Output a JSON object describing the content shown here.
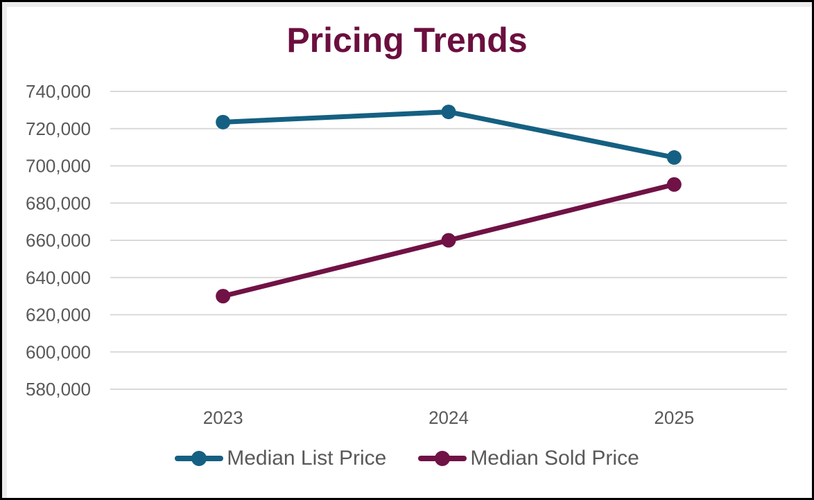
{
  "frame": {
    "background": "#ffffff",
    "border_color": "#000000",
    "gutter_color": "#ececec"
  },
  "chart_data": {
    "type": "line",
    "title": "Pricing Trends",
    "title_color": "#6B0F3F",
    "categories": [
      "2023",
      "2024",
      "2025"
    ],
    "series": [
      {
        "name": "Median List Price",
        "color": "#156082",
        "values": [
          723500,
          729000,
          704500
        ]
      },
      {
        "name": "Median Sold Price",
        "color": "#701245",
        "values": [
          630000,
          660000,
          690000
        ]
      }
    ],
    "xlabel": "",
    "ylabel": "",
    "ylim": [
      580000,
      740000
    ],
    "ytick_step": 20000,
    "ytick_labels": [
      "740,000",
      "720,000",
      "700,000",
      "680,000",
      "660,000",
      "640,000",
      "620,000",
      "600,000",
      "580,000"
    ],
    "grid": true,
    "gridline_color": "#D9D9D9",
    "tick_label_color": "#595959",
    "legend_position": "bottom",
    "legend_text_color": "#595959",
    "line_width": 7,
    "marker_radius": 10.5
  }
}
